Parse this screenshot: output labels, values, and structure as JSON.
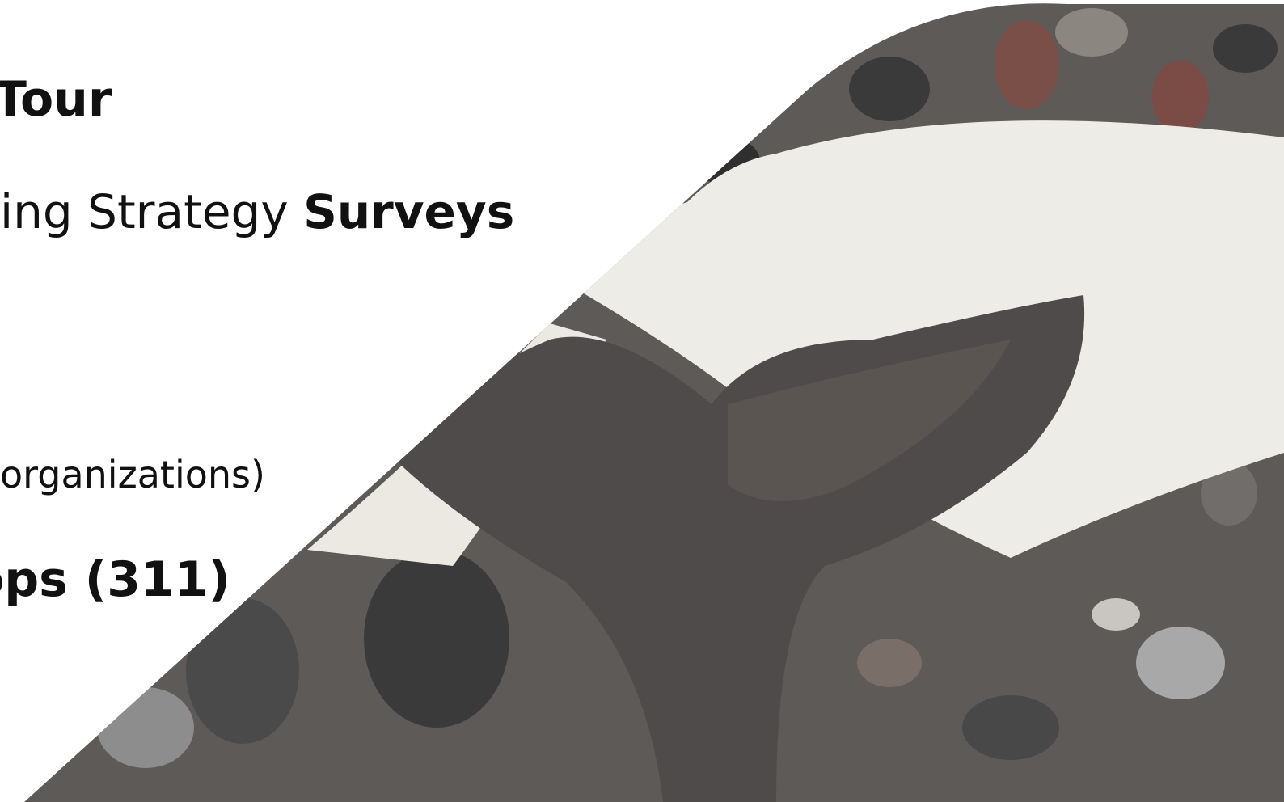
{
  "slide": {
    "items": [
      {
        "parts": [
          "Tour"
        ]
      },
      {
        "parts": [
          "ing Strategy",
          "Surveys"
        ]
      },
      {
        "parts": [
          "organizations)"
        ]
      },
      {
        "parts": [
          "ops (311)"
        ]
      }
    ]
  }
}
